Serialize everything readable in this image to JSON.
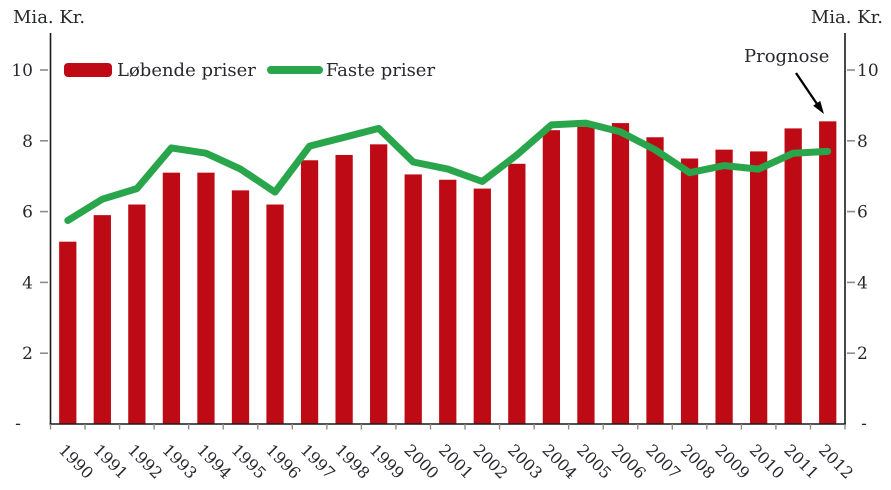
{
  "colors": {
    "bar": "#BE0A14",
    "line": "#29A64C",
    "text": "#26282d",
    "tick": "#8c8c8c",
    "axis": "#1a1a1a",
    "arrow": "#000000"
  },
  "chart_data": {
    "type": "bar",
    "title": "",
    "unit_left": "Mia. Kr.",
    "unit_right": "Mia. Kr.",
    "annotation": "Prognose",
    "legend_position": "top-left",
    "grid": false,
    "ylim": [
      0,
      11
    ],
    "y_ticks": [
      2,
      4,
      6,
      8,
      10
    ],
    "zero_tick_label": "-",
    "categories": [
      "1990",
      "1991",
      "1992",
      "1993",
      "1994",
      "1995",
      "1996",
      "1997",
      "1998",
      "1999",
      "2000",
      "2001",
      "2002",
      "2003",
      "2004",
      "2005",
      "2006",
      "2007",
      "2008",
      "2009",
      "2010",
      "2011",
      "2012"
    ],
    "series": [
      {
        "name": "Løbende priser",
        "type": "bar",
        "color": "#BE0A14",
        "values": [
          5.15,
          5.9,
          6.2,
          7.1,
          7.1,
          6.6,
          6.2,
          7.45,
          7.6,
          7.9,
          7.05,
          6.9,
          6.65,
          7.35,
          8.3,
          8.4,
          8.5,
          8.1,
          7.5,
          7.75,
          7.7,
          8.35,
          8.55
        ]
      },
      {
        "name": "Faste priser",
        "type": "line",
        "color": "#29A64C",
        "values": [
          5.75,
          6.35,
          6.65,
          7.8,
          7.65,
          7.2,
          6.55,
          7.85,
          8.1,
          8.35,
          7.4,
          7.2,
          6.85,
          7.6,
          8.45,
          8.5,
          8.25,
          7.75,
          7.1,
          7.3,
          7.2,
          7.65,
          7.7
        ]
      }
    ]
  }
}
